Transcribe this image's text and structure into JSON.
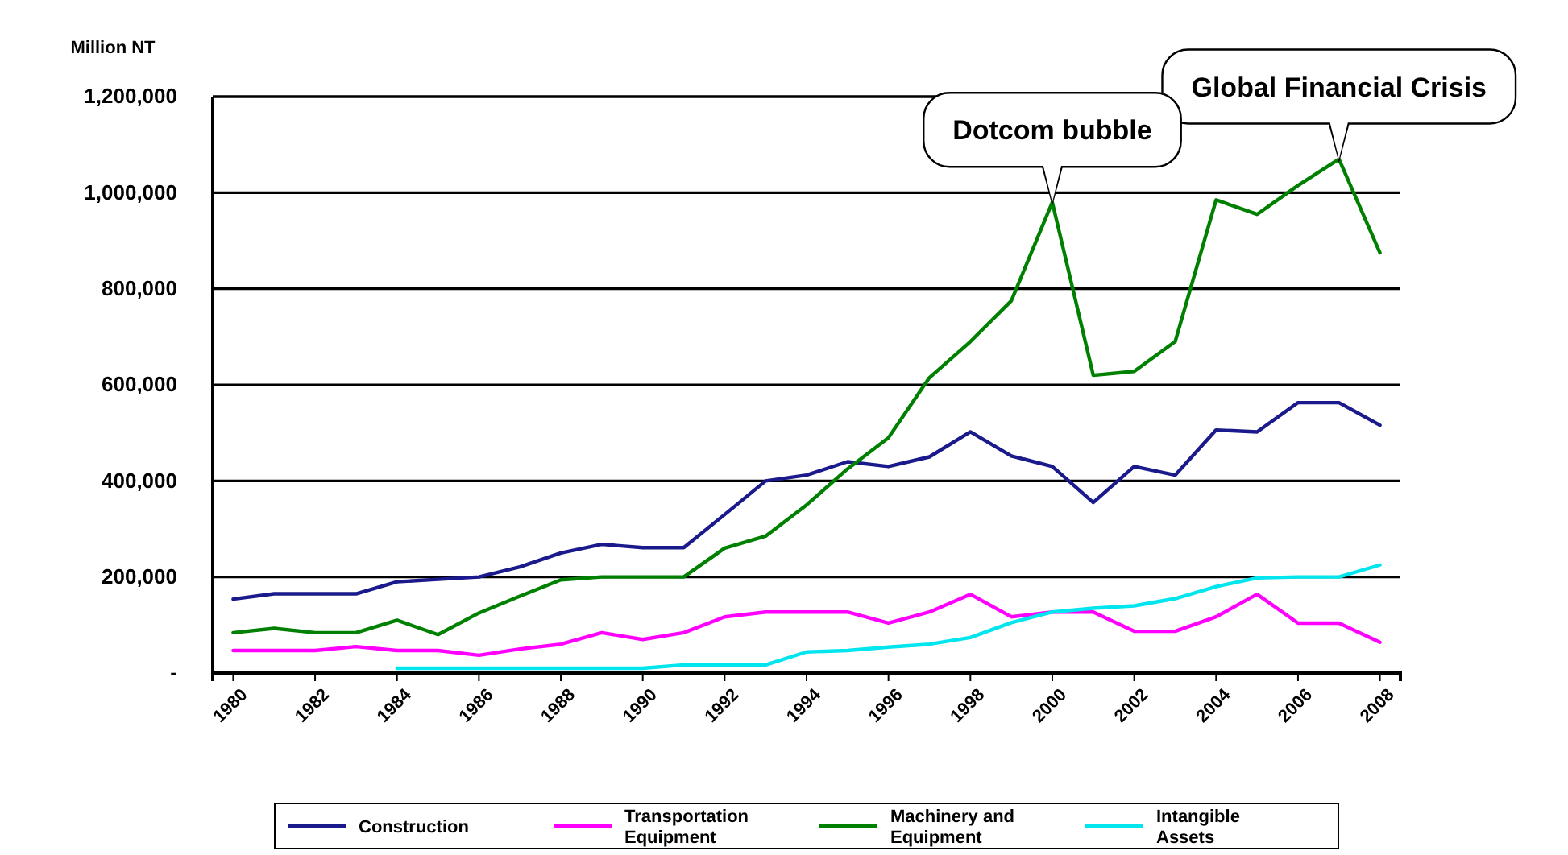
{
  "chart_data": {
    "type": "line",
    "ylabel": "Million NT",
    "x": [
      1980,
      1981,
      1982,
      1983,
      1984,
      1985,
      1986,
      1987,
      1988,
      1989,
      1990,
      1991,
      1992,
      1993,
      1994,
      1995,
      1996,
      1997,
      1998,
      1999,
      2000,
      2001,
      2002,
      2003,
      2004,
      2005,
      2006,
      2007,
      2008
    ],
    "xlim": [
      1979.5,
      2008.5
    ],
    "xticks": [
      1980,
      1982,
      1984,
      1986,
      1988,
      1990,
      1992,
      1994,
      1996,
      1998,
      2000,
      2002,
      2004,
      2006,
      2008
    ],
    "ylim": [
      0,
      1200000
    ],
    "yticks": [
      {
        "value": 0,
        "label": "-"
      },
      {
        "value": 200000,
        "label": "200,000"
      },
      {
        "value": 400000,
        "label": "400,000"
      },
      {
        "value": 600000,
        "label": "600,000"
      },
      {
        "value": 800000,
        "label": "800,000"
      },
      {
        "value": 1000000,
        "label": "1,000,000"
      },
      {
        "value": 1200000,
        "label": "1,200,000"
      }
    ],
    "grid": "y",
    "legend": "bottom",
    "marker": "none",
    "line_style": "solid",
    "series": [
      {
        "name": "Construction",
        "color": "#1a1a8c",
        "values": [
          154000,
          165000,
          165000,
          165000,
          190000,
          195000,
          200000,
          221000,
          250000,
          268000,
          261000,
          261000,
          330000,
          400000,
          412000,
          440000,
          430000,
          450000,
          502000,
          452000,
          430000,
          355000,
          430000,
          412000,
          506000,
          502000,
          563000,
          563000,
          516000
        ]
      },
      {
        "name": "Transportation Equipment",
        "color": "#ff00ff",
        "values": [
          47000,
          47000,
          47000,
          55000,
          47000,
          47000,
          37000,
          50000,
          60000,
          84000,
          70000,
          84000,
          117000,
          127000,
          127000,
          127000,
          104000,
          127000,
          164000,
          117000,
          127000,
          127000,
          87000,
          87000,
          117000,
          164000,
          104000,
          104000,
          64000
        ]
      },
      {
        "name": "Machinery and Equipment",
        "color": "#008000",
        "values": [
          84000,
          93000,
          84000,
          84000,
          110000,
          80000,
          125000,
          160000,
          194000,
          200000,
          200000,
          200000,
          260000,
          285000,
          350000,
          425000,
          490000,
          615000,
          690000,
          775000,
          980000,
          620000,
          628000,
          690000,
          985000,
          955000,
          1015000,
          1070000,
          875000
        ]
      },
      {
        "name": "Intangible Assets",
        "color": "#00e5ee",
        "values": [
          null,
          null,
          null,
          null,
          10000,
          10000,
          10000,
          10000,
          10000,
          10000,
          10000,
          17000,
          17000,
          17000,
          44000,
          47000,
          54000,
          60000,
          74000,
          105000,
          127000,
          135000,
          140000,
          155000,
          180000,
          198000,
          200000,
          200000,
          225000
        ]
      }
    ],
    "annotations": [
      {
        "text": "Dotcom bubble",
        "x": 2000,
        "y": 980000
      },
      {
        "text": "Global Financial Crisis",
        "x": 2007,
        "y": 1070000
      }
    ]
  }
}
